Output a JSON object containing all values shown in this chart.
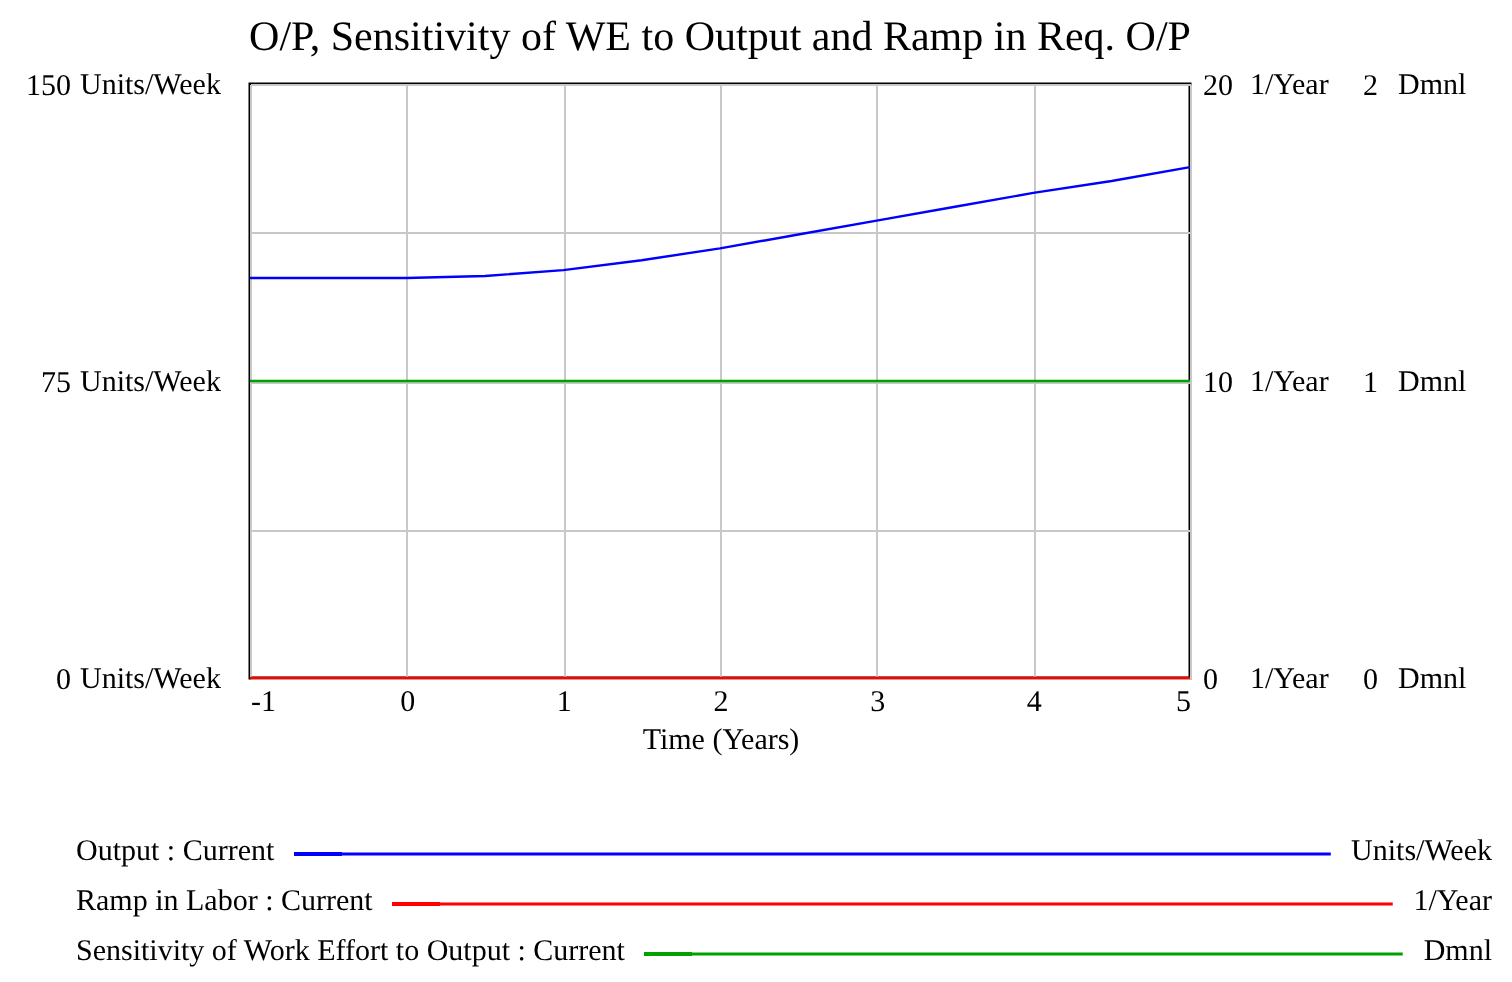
{
  "chart_data": {
    "type": "line",
    "title": "O/P, Sensitivity of WE to Output and Ramp in Req. O/P",
    "xlabel": "Time (Years)",
    "ylabel": "Units/Week",
    "y2label": "1/Year",
    "y3label": "Dmnl",
    "x": [
      -1,
      0,
      0.5,
      1,
      1.5,
      2,
      2.5,
      3,
      3.5,
      4,
      4.5,
      5
    ],
    "xlim": [
      -1,
      5
    ],
    "xticks": [
      -1,
      0,
      1,
      2,
      3,
      4,
      5
    ],
    "ylim": [
      0,
      150
    ],
    "yticks": [
      0,
      {
        "value": 37.5,
        "label": null
      },
      75,
      {
        "value": 112.5,
        "label": null
      },
      150
    ],
    "y2lim": [
      0,
      20
    ],
    "y2ticks": [
      0,
      10,
      20
    ],
    "y3lim": [
      0,
      2
    ],
    "y3ticks": [
      0,
      1,
      2
    ],
    "grid": true,
    "legend": "bottom",
    "marker": "none",
    "line_style": "solid",
    "series": [
      {
        "name": "Output : Current",
        "color": "#0000ff",
        "axis": "y",
        "values": [
          101,
          101,
          101.5,
          103,
          105.5,
          108.5,
          112,
          115.5,
          119,
          122.5,
          125.5,
          129
        ]
      },
      {
        "name": "Ramp in Labor : Current",
        "color": "#ff0000",
        "axis": "y2",
        "values": [
          0,
          0,
          0,
          0,
          0,
          0,
          0,
          0,
          0,
          0,
          0,
          0
        ]
      },
      {
        "name": "Sensitivity of Work Effort to Output : Current",
        "color": "#00a000",
        "axis": "y3",
        "values": [
          1,
          1,
          1,
          1,
          1,
          1,
          1,
          1,
          1,
          1,
          1,
          1
        ]
      }
    ]
  }
}
